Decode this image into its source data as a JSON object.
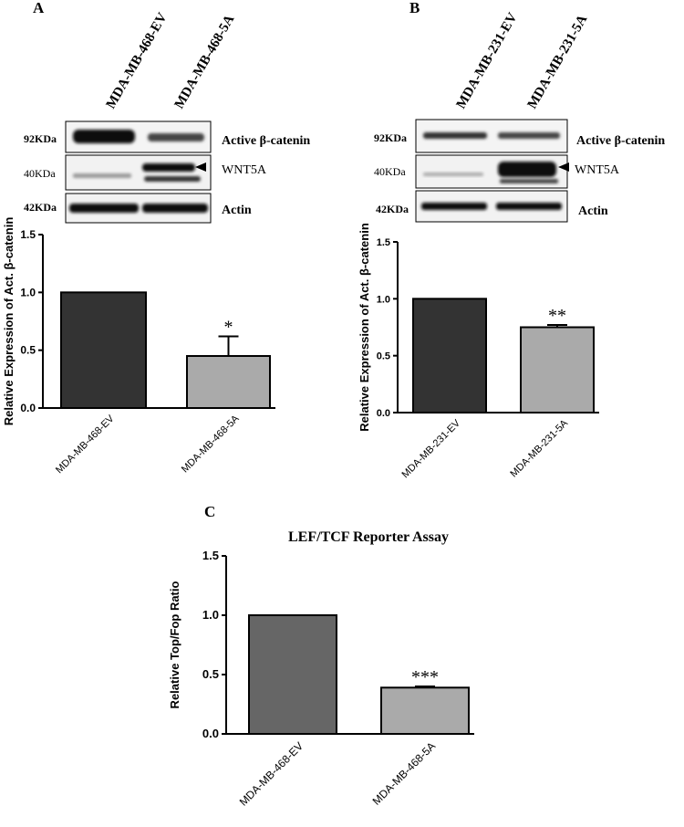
{
  "panels": [
    {
      "letter": "A",
      "blot": {
        "lanes": [
          "MDA-MB-468-EV",
          "MDA-MB-468-5A"
        ],
        "rows": [
          {
            "marker": "92KDa",
            "label": "Active β-catenin"
          },
          {
            "marker": "40KDa",
            "label": "WNT5A"
          },
          {
            "marker": "42KDa",
            "label": "Actin"
          }
        ]
      }
    },
    {
      "letter": "B",
      "blot": {
        "lanes": [
          "MDA-MB-231-EV",
          "MDA-MB-231-5A"
        ],
        "rows": [
          {
            "marker": "92KDa",
            "label": "Active β-catenin"
          },
          {
            "marker": "40KDa",
            "label": "WNT5A"
          },
          {
            "marker": "42KDa",
            "label": "Actin"
          }
        ]
      }
    },
    {
      "letter": "C"
    }
  ],
  "chart_data": [
    {
      "type": "bar",
      "panel": "A",
      "title": "",
      "ylabel": "Relative Expression of Act. β-catenin",
      "categories": [
        "MDA-MB-468-EV",
        "MDA-MB-468-5A"
      ],
      "values": [
        1.0,
        0.45
      ],
      "errors": [
        0,
        0.17
      ],
      "significance": [
        "",
        "*"
      ],
      "bar_colors": [
        "#333333",
        "#aaaaaa"
      ],
      "ylim": [
        0,
        1.5
      ],
      "yticks": [
        "0.0",
        "0.5",
        "1.0",
        "1.5"
      ]
    },
    {
      "type": "bar",
      "panel": "B",
      "title": "",
      "ylabel": "Relative Expression of Act. β-catenin",
      "categories": [
        "MDA-MB-231-EV",
        "MDA-MB-231-5A"
      ],
      "values": [
        1.0,
        0.75
      ],
      "errors": [
        0,
        0.02
      ],
      "significance": [
        "",
        "**"
      ],
      "bar_colors": [
        "#333333",
        "#aaaaaa"
      ],
      "ylim": [
        0,
        1.5
      ],
      "yticks": [
        "0.0",
        "0.5",
        "1.0",
        "1.5"
      ]
    },
    {
      "type": "bar",
      "panel": "C",
      "title": "LEF/TCF Reporter Assay",
      "ylabel": "Relative Top/Fop Ratio",
      "categories": [
        "MDA-MB-468-EV",
        "MDA-MB-468-5A"
      ],
      "values": [
        1.0,
        0.39
      ],
      "errors": [
        0,
        0.01
      ],
      "significance": [
        "",
        "***"
      ],
      "bar_colors": [
        "#666666",
        "#aaaaaa"
      ],
      "ylim": [
        0,
        1.5
      ],
      "yticks": [
        "0.0",
        "0.5",
        "1.0",
        "1.5"
      ]
    }
  ]
}
